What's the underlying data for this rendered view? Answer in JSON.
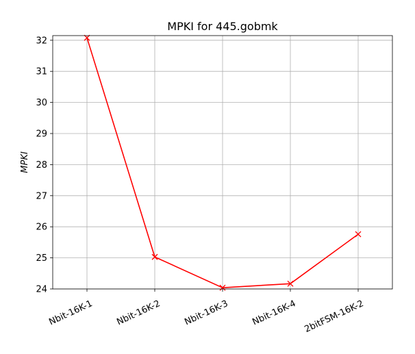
{
  "chart_data": {
    "type": "line",
    "title": "MPKI for 445.gobmk",
    "xlabel": "",
    "ylabel": "MPKI",
    "categories": [
      "Nbit-16K-1",
      "Nbit-16K-2",
      "Nbit-16K-3",
      "Nbit-16K-4",
      "2bitFSM-16K-2"
    ],
    "series": [
      {
        "values": [
          32.08,
          25.03,
          24.04,
          24.17,
          25.76
        ],
        "color": "#ff0000",
        "marker": "x"
      }
    ],
    "ylim": [
      24.0,
      32.15
    ],
    "yticks": [
      24,
      25,
      26,
      27,
      28,
      29,
      30,
      31,
      32
    ],
    "grid": true,
    "xtick_rotation": 25
  }
}
